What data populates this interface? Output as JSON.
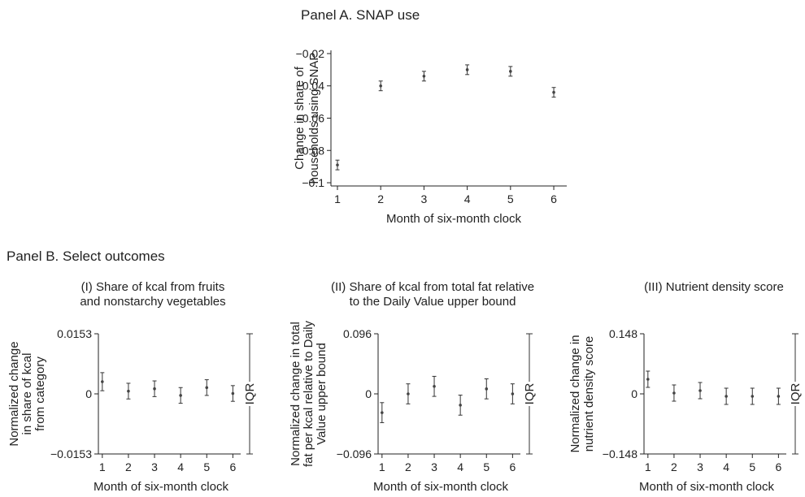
{
  "chart_data": [
    {
      "type": "scatter",
      "panel_title": "Panel A. SNAP use",
      "title": "",
      "xlabel": "Month of six-month clock",
      "ylabel_lines": [
        "Change in share of",
        "households using SNAP"
      ],
      "x": [
        1,
        2,
        3,
        4,
        5,
        6
      ],
      "values": [
        -0.089,
        -0.04,
        -0.034,
        -0.03,
        -0.031,
        -0.044
      ],
      "ci_low": [
        -0.092,
        -0.043,
        -0.037,
        -0.033,
        -0.034,
        -0.047
      ],
      "ci_high": [
        -0.086,
        -0.037,
        -0.031,
        -0.027,
        -0.028,
        -0.041
      ],
      "xticks": [
        "1",
        "2",
        "3",
        "4",
        "5",
        "6"
      ],
      "yticks": [
        -0.02,
        -0.04,
        -0.06,
        -0.08,
        -0.1
      ],
      "ytick_labels": [
        "−0.02",
        "−0.04",
        "−0.06",
        "−0.08",
        "−0.1"
      ],
      "xlim": [
        0.85,
        6.3
      ],
      "ylim": [
        -0.102,
        -0.018
      ],
      "grid": false
    },
    {
      "type": "scatter",
      "panel_title": "Panel B. Select outcomes",
      "title_lines": [
        "(I) Share of kcal from fruits",
        "and nonstarchy vegetables"
      ],
      "xlabel": "Month of six-month clock",
      "ylabel_lines": [
        "Normalized change",
        "in share of kcal",
        "from category"
      ],
      "x": [
        1,
        2,
        3,
        4,
        5,
        6
      ],
      "values": [
        0.0031,
        0.0007,
        0.0013,
        -0.0004,
        0.0016,
        0.0001
      ],
      "ci_low": [
        0.0008,
        -0.0013,
        -0.0007,
        -0.0024,
        -0.0004,
        -0.0019
      ],
      "ci_high": [
        0.0054,
        0.0027,
        0.0033,
        0.0016,
        0.0036,
        0.0021
      ],
      "xticks": [
        "1",
        "2",
        "3",
        "4",
        "5",
        "6"
      ],
      "yticks": [
        0.0153,
        0,
        -0.0153
      ],
      "ytick_labels": [
        "0.0153",
        "0",
        "−0.0153"
      ],
      "iqr_label": "IQR",
      "iqr_range": [
        -0.0153,
        0.0153
      ],
      "xlim": [
        0.85,
        6.3
      ],
      "ylim": [
        -0.0153,
        0.0153
      ],
      "grid": false
    },
    {
      "type": "scatter",
      "title_lines": [
        "(II) Share of kcal from total fat relative",
        "to the Daily Value upper bound"
      ],
      "xlabel": "Month of six-month clock",
      "ylabel_lines": [
        "Normalized change in total",
        "fat per kcal relative to Daily",
        "Value upper bound"
      ],
      "x": [
        1,
        2,
        3,
        4,
        5,
        6
      ],
      "values": [
        -0.03,
        0.0,
        0.012,
        -0.018,
        0.008,
        0.0
      ],
      "ci_low": [
        -0.046,
        -0.016,
        -0.004,
        -0.034,
        -0.008,
        -0.016
      ],
      "ci_high": [
        -0.014,
        0.016,
        0.028,
        -0.002,
        0.024,
        0.016
      ],
      "xticks": [
        "1",
        "2",
        "3",
        "4",
        "5",
        "6"
      ],
      "yticks": [
        0.096,
        0,
        -0.096
      ],
      "ytick_labels": [
        "0.096",
        "0",
        "−0.096"
      ],
      "iqr_label": "IQR",
      "iqr_range": [
        -0.096,
        0.096
      ],
      "xlim": [
        0.85,
        6.3
      ],
      "ylim": [
        -0.096,
        0.096
      ],
      "grid": false
    },
    {
      "type": "scatter",
      "title_lines": [
        "(III) Nutrient density score"
      ],
      "xlabel": "Month of six-month clock",
      "ylabel_lines": [
        "Normalized change in",
        "nutrient density score"
      ],
      "x": [
        1,
        2,
        3,
        4,
        5,
        6
      ],
      "values": [
        0.036,
        0.002,
        0.008,
        -0.006,
        -0.006,
        -0.006
      ],
      "ci_low": [
        0.016,
        -0.018,
        -0.012,
        -0.026,
        -0.026,
        -0.026
      ],
      "ci_high": [
        0.056,
        0.022,
        0.028,
        0.014,
        0.014,
        0.014
      ],
      "xticks": [
        "1",
        "2",
        "3",
        "4",
        "5",
        "6"
      ],
      "yticks": [
        0.148,
        0,
        -0.148
      ],
      "ytick_labels": [
        "0.148",
        "0",
        "−0.148"
      ],
      "iqr_label": "IQR",
      "iqr_range": [
        -0.148,
        0.148
      ],
      "xlim": [
        0.85,
        6.3
      ],
      "ylim": [
        -0.148,
        0.148
      ],
      "grid": false
    }
  ]
}
